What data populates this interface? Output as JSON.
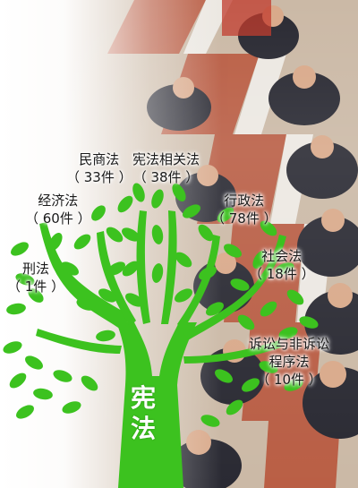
{
  "colors": {
    "tree_green": "#3cc21f",
    "label_text": "#1a1a1a",
    "trunk_text": "#ffffff"
  },
  "trunk": {
    "line1": "宪",
    "line2": "法"
  },
  "categories": [
    {
      "name": "民商法",
      "count": "（ 33件 ）"
    },
    {
      "name": "宪法相关法",
      "count": "（ 38件 ）"
    },
    {
      "name": "经济法",
      "count": "（ 60件 ）"
    },
    {
      "name": "行政法",
      "count": "（ 78件 ）"
    },
    {
      "name": "刑法",
      "count": "（ 1件 ）"
    },
    {
      "name": "社会法",
      "count": "（ 18件 ）"
    },
    {
      "name_line1": "诉讼与非诉讼",
      "name_line2": "程序法",
      "count": "（ 10件 ）"
    }
  ]
}
